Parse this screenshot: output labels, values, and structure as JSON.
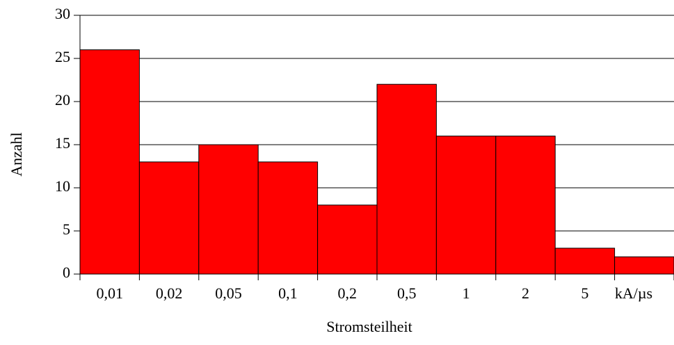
{
  "chart_data": {
    "type": "bar",
    "title": "",
    "categories": [
      "0,01",
      "0,02",
      "0,05",
      "0,1",
      "0,2",
      "0,5",
      "1",
      "2",
      "5",
      ""
    ],
    "values": [
      26,
      13,
      15,
      13,
      8,
      22,
      16,
      16,
      3,
      2
    ],
    "x_unit_label": "kA/µs",
    "xlabel": "Stromsteilheit",
    "ylabel": "Anzahl",
    "ylim": [
      0,
      30
    ],
    "yticks": [
      0,
      5,
      10,
      15,
      20,
      25,
      30
    ],
    "grid": true,
    "colors": {
      "bar_fill": "#ff0000",
      "bar_stroke": "#000000",
      "grid": "#000000"
    }
  }
}
